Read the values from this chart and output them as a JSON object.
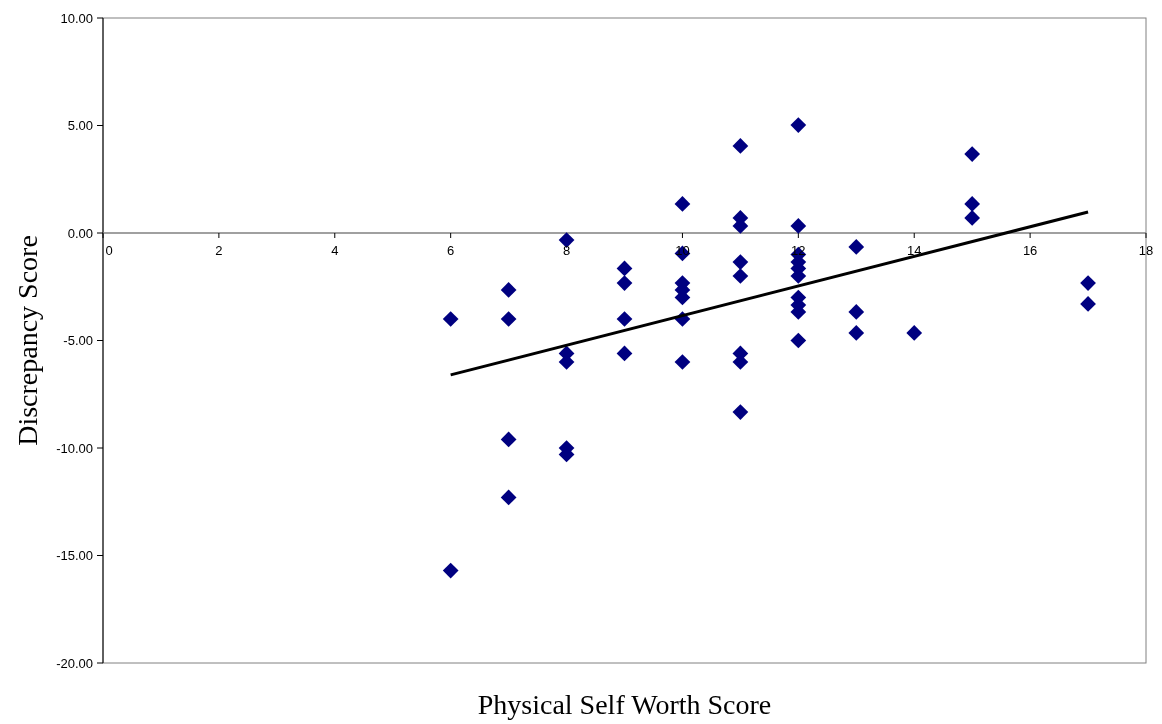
{
  "chart_data": {
    "type": "scatter",
    "xlabel": "Physical Self Worth Score",
    "ylabel": "Discrepancy Score",
    "grid": false,
    "xlim": [
      0,
      18
    ],
    "xticks": [
      0,
      2,
      4,
      6,
      8,
      10,
      12,
      14,
      16,
      18
    ],
    "ylim": [
      -20,
      10
    ],
    "yticks": [
      {
        "value": -20,
        "label": "-20.00"
      },
      {
        "value": -15,
        "label": "-15.00"
      },
      {
        "value": -10,
        "label": "-10.00"
      },
      {
        "value": -5,
        "label": "-5.00"
      },
      {
        "value": 0,
        "label": "0.00"
      },
      {
        "value": 5,
        "label": "5.00"
      },
      {
        "value": 10,
        "label": "10.00"
      }
    ],
    "series": [
      {
        "marker": "diamond",
        "color": "#000080",
        "x": [
          6,
          6,
          7,
          7,
          7,
          7,
          8,
          8,
          8,
          8,
          8,
          9,
          9,
          9,
          9,
          10,
          10,
          10,
          10,
          10,
          10,
          10,
          11,
          11,
          11,
          11,
          11,
          11,
          11,
          11,
          12,
          12,
          12,
          12,
          12,
          12,
          12,
          12,
          12,
          12,
          13,
          13,
          13,
          14,
          15,
          15,
          15,
          17,
          17
        ],
        "values": [
          -4,
          -15.7,
          -2.65,
          -4,
          -9.6,
          -12.3,
          -0.33,
          -5.6,
          -6,
          -10,
          -10.3,
          -1.65,
          -2.33,
          -4,
          -5.6,
          1.35,
          -0.95,
          -2.33,
          -2.65,
          -3,
          -4,
          -6,
          4.05,
          0.7,
          0.33,
          -1.35,
          -2,
          -5.6,
          -6,
          -8.33,
          5.02,
          0.33,
          -1,
          -1.35,
          -1.65,
          -2,
          -3,
          -3.35,
          -3.67,
          -5,
          -0.65,
          -3.67,
          -4.65,
          -4.65,
          3.67,
          1.35,
          0.7,
          -2.33,
          -3.3
        ]
      },
      {
        "type": "line",
        "marker": "none",
        "color": "#000000",
        "x": [
          6,
          17
        ],
        "values": [
          -6.6,
          0.98
        ]
      }
    ]
  }
}
